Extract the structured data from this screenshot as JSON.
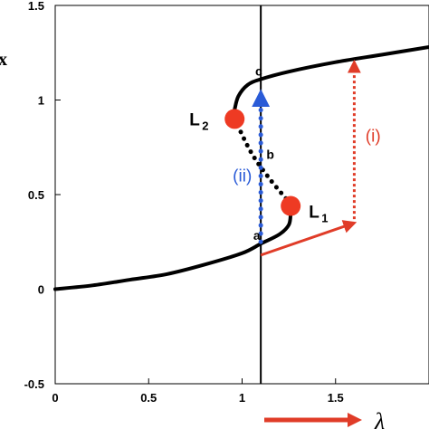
{
  "chart_data": {
    "type": "line",
    "xlim": [
      0,
      2.0
    ],
    "ylim": [
      -0.5,
      1.5
    ],
    "x_ticks": [
      "0",
      "0.5",
      "1",
      "1.5"
    ],
    "y_ticks": [
      "-0.5",
      "0",
      "0.5",
      "1",
      "1.5"
    ],
    "xlabel": "λ",
    "ylabel": "x",
    "grid": false,
    "series": [
      {
        "style": "solid",
        "color": "#000000",
        "points": [
          [
            0,
            0
          ],
          [
            0.2,
            0.02
          ],
          [
            0.4,
            0.05
          ],
          [
            0.6,
            0.08
          ],
          [
            0.8,
            0.13
          ],
          [
            1.0,
            0.19
          ],
          [
            1.1,
            0.24
          ],
          [
            1.2,
            0.29
          ],
          [
            1.25,
            0.34
          ],
          [
            1.26,
            0.4
          ]
        ]
      },
      {
        "style": "dashed",
        "color": "#000000",
        "points": [
          [
            1.26,
            0.45
          ],
          [
            1.15,
            0.58
          ],
          [
            1.05,
            0.72
          ],
          [
            0.96,
            0.9
          ]
        ]
      },
      {
        "style": "solid",
        "color": "#000000",
        "points": [
          [
            0.96,
            0.95
          ],
          [
            0.98,
            1.02
          ],
          [
            1.03,
            1.08
          ],
          [
            1.1,
            1.11
          ],
          [
            1.25,
            1.15
          ],
          [
            1.5,
            1.2
          ],
          [
            1.75,
            1.24
          ],
          [
            2.0,
            1.28
          ]
        ]
      }
    ],
    "vertical_line": {
      "x": 1.1,
      "color": "#000000"
    },
    "markers": [
      {
        "x": 0.96,
        "y": 0.9,
        "color": "#ee3a23",
        "label": "L",
        "sub": "2"
      },
      {
        "x": 1.26,
        "y": 0.44,
        "color": "#ee3a23",
        "label": "L",
        "sub": "1"
      }
    ],
    "point_labels": [
      {
        "text": "a",
        "x": 1.06,
        "y": 0.26
      },
      {
        "text": "b",
        "x": 1.13,
        "y": 0.69
      },
      {
        "text": "c",
        "x": 1.07,
        "y": 1.13
      }
    ],
    "annotations": [
      {
        "text": "(i)",
        "color": "#e03c28",
        "x": 1.66,
        "y": 0.78
      },
      {
        "text": "(ii)",
        "color": "#2a5bd7",
        "x": 0.95,
        "y": 0.57
      }
    ],
    "arrows": [
      {
        "style": "solid",
        "color": "#e03c28",
        "from": [
          1.1,
          0.18
        ],
        "to": [
          1.6,
          0.35
        ]
      },
      {
        "style": "dotted",
        "color": "#e03c28",
        "from": [
          1.6,
          0.37
        ],
        "to": [
          1.6,
          1.2
        ]
      },
      {
        "style": "dotted",
        "color": "#2a5bd7",
        "from": [
          1.1,
          0.25
        ],
        "to": [
          1.1,
          1.03
        ]
      }
    ],
    "xaxis_arrow": {
      "color": "#e03c28"
    }
  }
}
